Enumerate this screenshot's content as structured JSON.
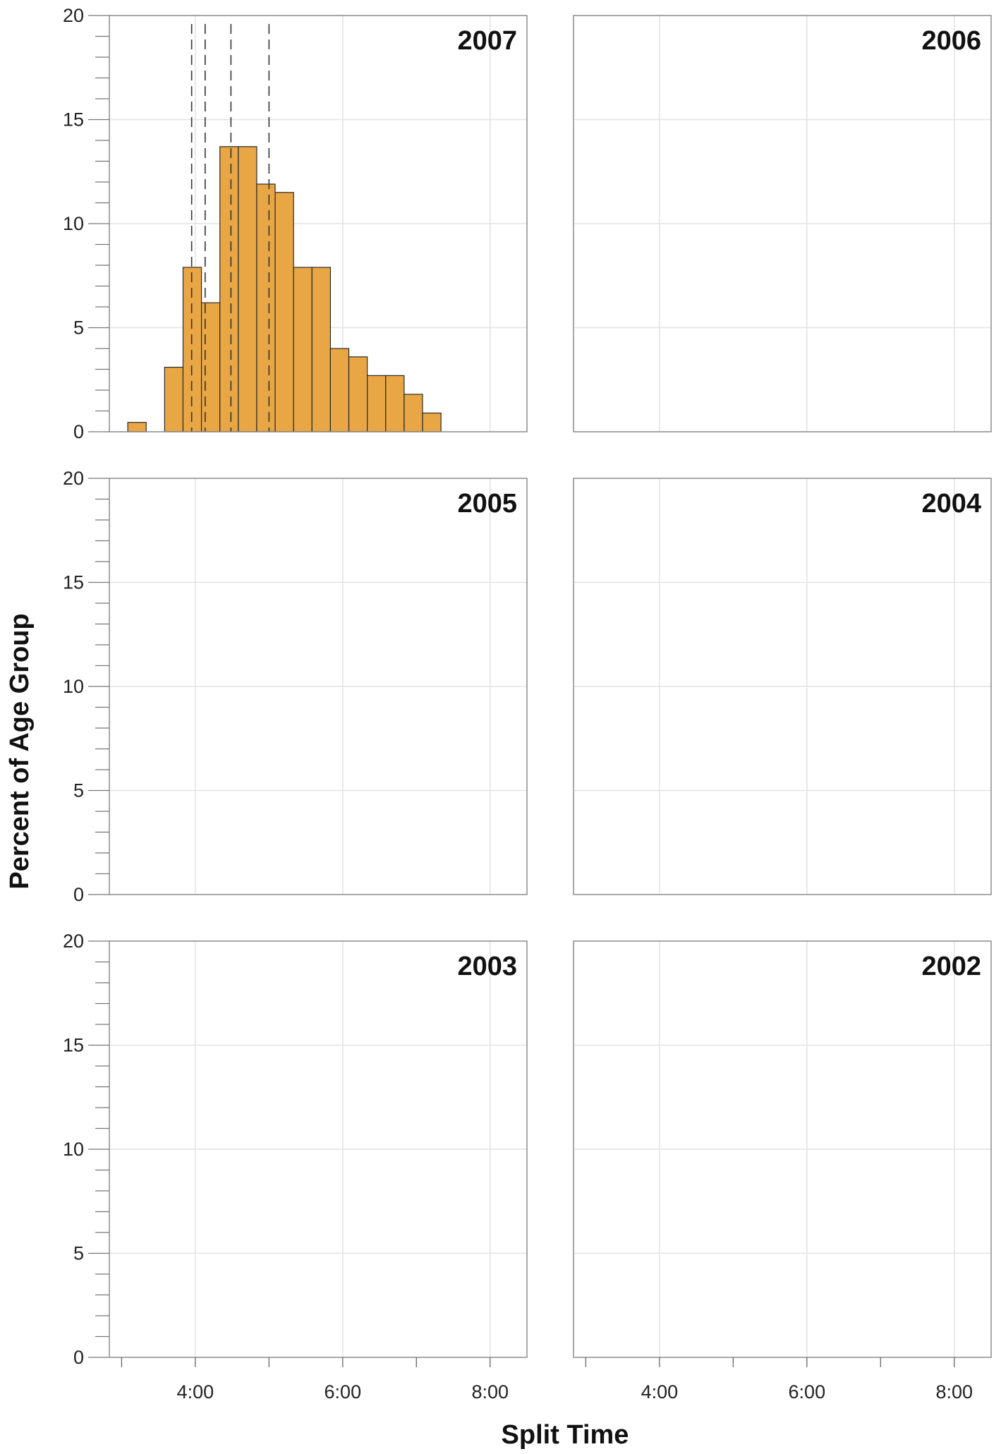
{
  "chart_data": {
    "type": "bar",
    "xlabel": "Split Time",
    "ylabel": "Percent of Age Group",
    "ylim": [
      0,
      20
    ],
    "xlim_minutes": [
      170,
      510
    ],
    "x_tick_labels": [
      {
        "minutes": 240,
        "label": "4:00"
      },
      {
        "minutes": 360,
        "label": "6:00"
      },
      {
        "minutes": 480,
        "label": "8:00"
      }
    ],
    "x_minor_tick_minutes": [
      180,
      300,
      420
    ],
    "y_ticks": [
      0,
      5,
      10,
      15,
      20
    ],
    "grid": true,
    "bar_color": "#E8A644",
    "panels": [
      {
        "title": "2007",
        "bin_width_minutes": 15,
        "bins": [
          {
            "x_start": 185,
            "value": 0.45
          },
          {
            "x_start": 200,
            "value": 0.0
          },
          {
            "x_start": 215,
            "value": 3.1
          },
          {
            "x_start": 230,
            "value": 7.9
          },
          {
            "x_start": 245,
            "value": 6.2
          },
          {
            "x_start": 260,
            "value": 13.7
          },
          {
            "x_start": 275,
            "value": 13.7
          },
          {
            "x_start": 290,
            "value": 11.9
          },
          {
            "x_start": 305,
            "value": 11.5
          },
          {
            "x_start": 320,
            "value": 7.9
          },
          {
            "x_start": 335,
            "value": 7.9
          },
          {
            "x_start": 350,
            "value": 4.0
          },
          {
            "x_start": 365,
            "value": 3.6
          },
          {
            "x_start": 380,
            "value": 2.7
          },
          {
            "x_start": 395,
            "value": 2.7
          },
          {
            "x_start": 410,
            "value": 1.8
          },
          {
            "x_start": 425,
            "value": 0.9
          }
        ],
        "reference_lines_minutes": [
          237,
          248,
          269,
          300
        ]
      },
      {
        "title": "2006",
        "bins": [],
        "reference_lines_minutes": []
      },
      {
        "title": "2005",
        "bins": [],
        "reference_lines_minutes": []
      },
      {
        "title": "2004",
        "bins": [],
        "reference_lines_minutes": []
      },
      {
        "title": "2003",
        "bins": [],
        "reference_lines_minutes": []
      },
      {
        "title": "2002",
        "bins": [],
        "reference_lines_minutes": []
      }
    ]
  }
}
